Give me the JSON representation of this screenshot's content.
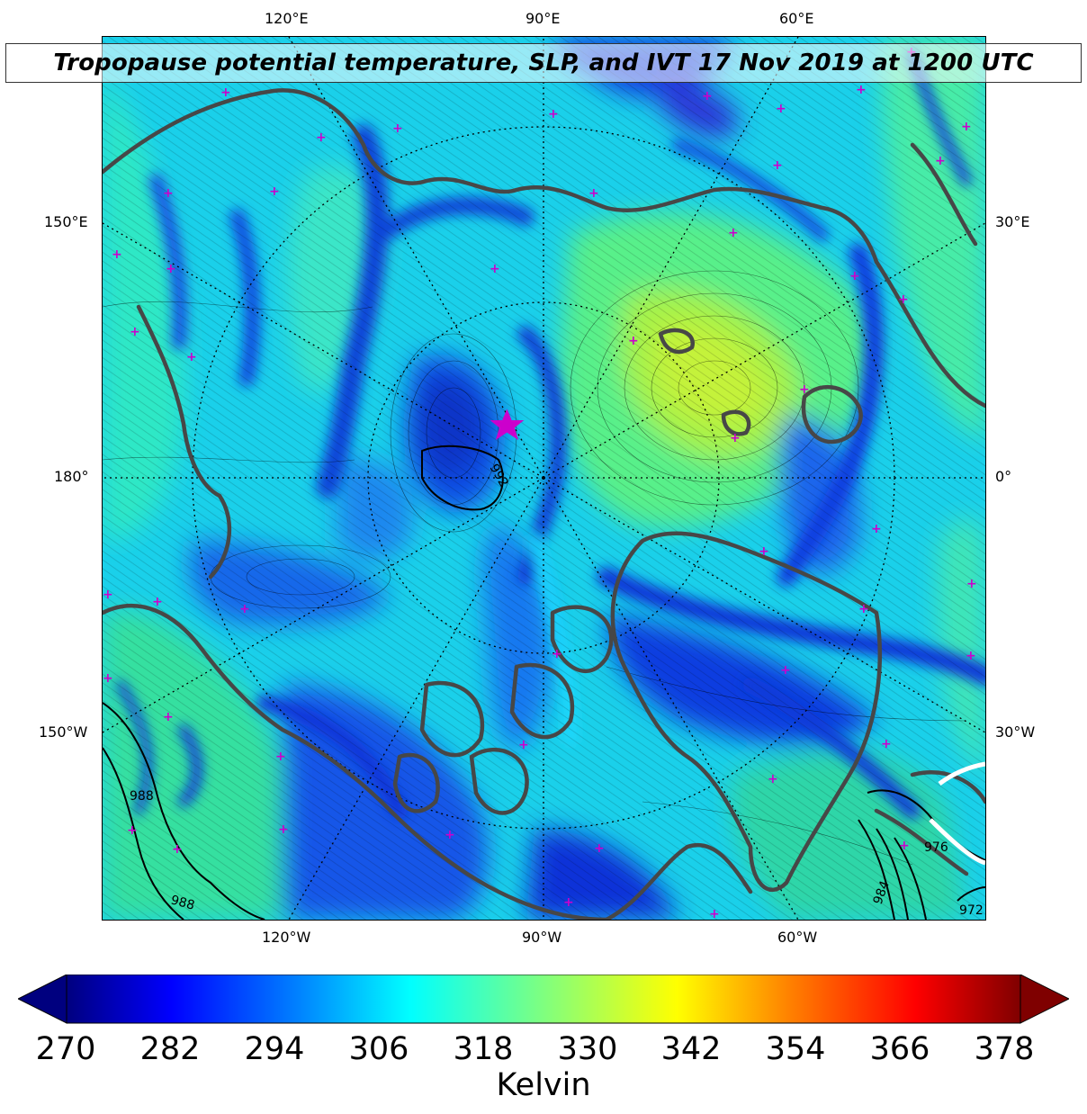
{
  "title": "Tropopause potential temperature, SLP, and IVT 17 Nov 2019 at 1200 UTC",
  "map_labels": {
    "top": [
      "120°E",
      "90°E",
      "60°E"
    ],
    "bottom": [
      "120°W",
      "90°W",
      "60°W"
    ],
    "left": [
      "150°E",
      "180°",
      "150°W"
    ],
    "right": [
      "30°E",
      "0°",
      "30°W"
    ]
  },
  "contour_labels": [
    "992",
    "988",
    "988",
    "972",
    "976",
    "984"
  ],
  "colorbar": {
    "ticks": [
      "270",
      "282",
      "294",
      "306",
      "318",
      "330",
      "342",
      "354",
      "366",
      "378"
    ],
    "label": "Kelvin",
    "colormap": "jet",
    "colors": [
      "#00007f",
      "#0000ff",
      "#007fff",
      "#00ffff",
      "#7fff7f",
      "#ffff00",
      "#ff7f00",
      "#ff0000",
      "#7f0000"
    ]
  },
  "colors": {
    "coastline": "#474747",
    "slp_contour": "#000000",
    "marker": "#cc00cc",
    "star": "#cc00cc"
  }
}
